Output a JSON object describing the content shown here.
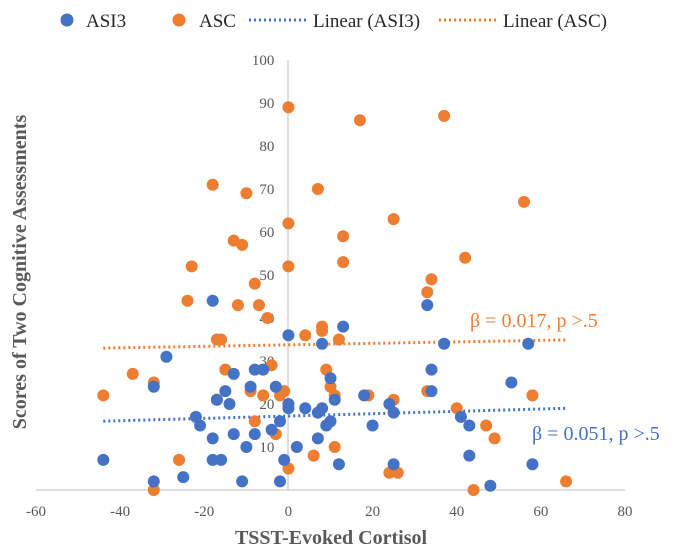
{
  "chart_data": {
    "type": "scatter",
    "title": "",
    "xlabel": "TSST-Evoked Cortisol",
    "ylabel": "Scores of Two Cognitive Assessments",
    "xlim": [
      -60,
      80
    ],
    "ylim": [
      0,
      100
    ],
    "x_ticks": [
      -60,
      -40,
      -20,
      0,
      20,
      40,
      60,
      80
    ],
    "y_ticks": [
      10,
      20,
      30,
      40,
      50,
      60,
      70,
      80,
      90,
      100
    ],
    "grid": false,
    "legend_position": "top",
    "series": [
      {
        "name": "ASI3",
        "color": "#4472C4",
        "points": [
          [
            -44,
            7
          ],
          [
            -32,
            2
          ],
          [
            -32,
            24
          ],
          [
            -29,
            31
          ],
          [
            -25,
            3
          ],
          [
            -22,
            17
          ],
          [
            -21,
            15
          ],
          [
            -18,
            12
          ],
          [
            -18,
            7
          ],
          [
            -18,
            44
          ],
          [
            -17,
            21
          ],
          [
            -16,
            7
          ],
          [
            -15,
            23
          ],
          [
            -14,
            20
          ],
          [
            -13,
            13
          ],
          [
            -13,
            27
          ],
          [
            -11,
            2
          ],
          [
            -10,
            10
          ],
          [
            -9,
            24
          ],
          [
            -8,
            13
          ],
          [
            -8,
            28
          ],
          [
            -6,
            28
          ],
          [
            -4,
            14
          ],
          [
            -3,
            24
          ],
          [
            -2,
            16
          ],
          [
            -1,
            7
          ],
          [
            -2,
            2
          ],
          [
            0,
            20
          ],
          [
            0,
            19
          ],
          [
            0,
            36
          ],
          [
            2,
            10
          ],
          [
            4,
            19
          ],
          [
            7,
            18
          ],
          [
            7,
            12
          ],
          [
            8,
            34
          ],
          [
            8,
            19
          ],
          [
            9,
            15
          ],
          [
            10,
            26
          ],
          [
            10,
            16
          ],
          [
            11,
            21
          ],
          [
            12,
            6
          ],
          [
            13,
            38
          ],
          [
            18,
            22
          ],
          [
            20,
            15
          ],
          [
            24,
            20
          ],
          [
            25,
            18
          ],
          [
            25,
            6
          ],
          [
            33,
            43
          ],
          [
            34,
            23
          ],
          [
            34,
            28
          ],
          [
            37,
            34
          ],
          [
            41,
            17
          ],
          [
            43,
            15
          ],
          [
            43,
            8
          ],
          [
            48,
            1
          ],
          [
            53,
            25
          ],
          [
            57,
            34
          ],
          [
            58,
            6
          ]
        ],
        "trendline": {
          "name": "Linear (ASI3)",
          "x": [
            -44,
            66
          ],
          "y": [
            16.0,
            19.0
          ]
        }
      },
      {
        "name": "ASC",
        "color": "#ED7D31",
        "points": [
          [
            -44,
            22
          ],
          [
            -37,
            27
          ],
          [
            -32,
            25
          ],
          [
            -32,
            0
          ],
          [
            -26,
            7
          ],
          [
            -24,
            44
          ],
          [
            -23,
            52
          ],
          [
            -18,
            71
          ],
          [
            -17,
            35
          ],
          [
            -17,
            21
          ],
          [
            -16,
            35
          ],
          [
            -15,
            28
          ],
          [
            -13,
            58
          ],
          [
            -12,
            43
          ],
          [
            -11,
            57
          ],
          [
            -10,
            69
          ],
          [
            -9,
            23
          ],
          [
            -8,
            16
          ],
          [
            -8,
            48
          ],
          [
            -7,
            43
          ],
          [
            -6,
            22
          ],
          [
            -5,
            40
          ],
          [
            -4,
            29
          ],
          [
            -3,
            13
          ],
          [
            -2,
            22
          ],
          [
            -1,
            23
          ],
          [
            0,
            89
          ],
          [
            0,
            62
          ],
          [
            0,
            52
          ],
          [
            0,
            5
          ],
          [
            4,
            36
          ],
          [
            6,
            8
          ],
          [
            7,
            70
          ],
          [
            8,
            37
          ],
          [
            8,
            38
          ],
          [
            9,
            28
          ],
          [
            10,
            24
          ],
          [
            11,
            22
          ],
          [
            11,
            10
          ],
          [
            12,
            35
          ],
          [
            13,
            59
          ],
          [
            13,
            53
          ],
          [
            17,
            86
          ],
          [
            19,
            22
          ],
          [
            24,
            4
          ],
          [
            25,
            63
          ],
          [
            25,
            21
          ],
          [
            26,
            4
          ],
          [
            33,
            23
          ],
          [
            33,
            46
          ],
          [
            34,
            49
          ],
          [
            37,
            87
          ],
          [
            40,
            19
          ],
          [
            42,
            54
          ],
          [
            44,
            0
          ],
          [
            47,
            15
          ],
          [
            49,
            12
          ],
          [
            56,
            67
          ],
          [
            58,
            22
          ],
          [
            66,
            2
          ]
        ],
        "trendline": {
          "name": "Linear (ASC)",
          "x": [
            -44,
            66
          ],
          "y": [
            33.0,
            34.9
          ]
        }
      }
    ],
    "annotations": [
      {
        "text": "β = 0.017, p >.5",
        "color": "#ED7D31"
      },
      {
        "text": "β = 0.051, p >.5",
        "color": "#4472C4"
      }
    ]
  }
}
